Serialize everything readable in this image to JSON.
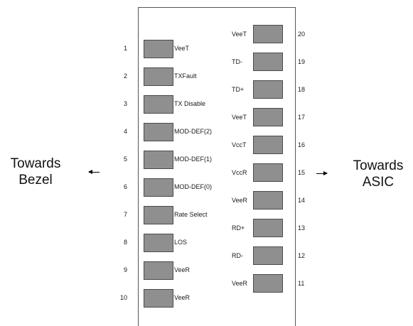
{
  "left_side": {
    "line1": "Towards",
    "line2": "Bezel"
  },
  "right_side": {
    "line1": "Towards",
    "line2": "ASIC"
  },
  "left_pins": [
    {
      "number": "1",
      "label": "VeeT"
    },
    {
      "number": "2",
      "label": "TXFault"
    },
    {
      "number": "3",
      "label": "TX Disable"
    },
    {
      "number": "4",
      "label": "MOD-DEF(2)"
    },
    {
      "number": "5",
      "label": "MOD-DEF(1)"
    },
    {
      "number": "6",
      "label": "MOD-DEF(0)"
    },
    {
      "number": "7",
      "label": "Rate Select"
    },
    {
      "number": "8",
      "label": "LOS"
    },
    {
      "number": "9",
      "label": "VeeR"
    },
    {
      "number": "10",
      "label": "VeeR"
    }
  ],
  "right_pins": [
    {
      "number": "20",
      "label": "VeeT"
    },
    {
      "number": "19",
      "label": "TD-"
    },
    {
      "number": "18",
      "label": "TD+"
    },
    {
      "number": "17",
      "label": "VeeT"
    },
    {
      "number": "16",
      "label": "VccT"
    },
    {
      "number": "15",
      "label": "VccR"
    },
    {
      "number": "14",
      "label": "VeeR"
    },
    {
      "number": "13",
      "label": "RD+"
    },
    {
      "number": "12",
      "label": "RD-"
    },
    {
      "number": "11",
      "label": "VeeR"
    }
  ]
}
